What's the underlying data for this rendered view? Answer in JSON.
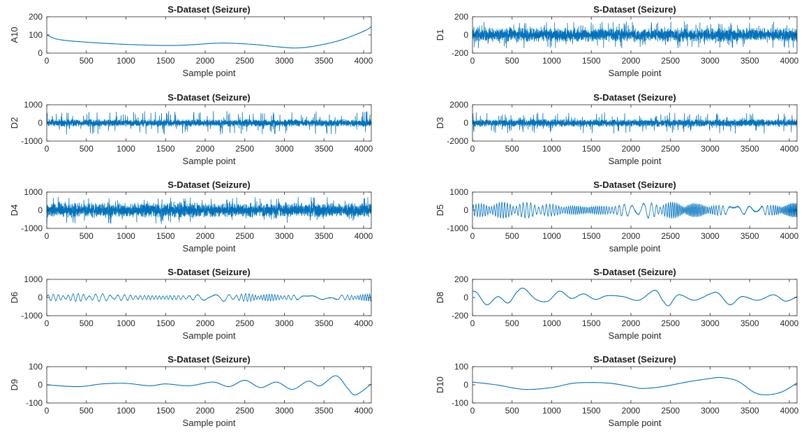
{
  "figure": {
    "line_color": "#0072bd",
    "axis_color": "#262626",
    "background": "#ffffff"
  },
  "chart_data": [
    {
      "type": "line",
      "title": "S-Dataset (Seizure)",
      "xlabel": "Sample point",
      "ylabel": "A10",
      "xlim": [
        0,
        4097
      ],
      "ylim": [
        0,
        200
      ],
      "xticks": [
        0,
        500,
        1000,
        1500,
        2000,
        2500,
        3000,
        3500,
        4000
      ],
      "yticks": [
        0,
        100,
        200
      ],
      "series": [
        {
          "kind": "smooth",
          "x": [
            0,
            150,
            500,
            1000,
            1500,
            1800,
            2200,
            2600,
            2900,
            3150,
            3400,
            3700,
            4000,
            4097
          ],
          "y": [
            100,
            75,
            60,
            48,
            42,
            45,
            55,
            48,
            35,
            28,
            40,
            70,
            120,
            145
          ]
        }
      ]
    },
    {
      "type": "line",
      "title": "S-Dataset (Seizure)",
      "xlabel": "Sample point",
      "ylabel": "D1",
      "xlim": [
        0,
        4097
      ],
      "ylim": [
        -200,
        200
      ],
      "xticks": [
        0,
        500,
        1000,
        1500,
        2000,
        2500,
        3000,
        3500,
        4000
      ],
      "yticks": [
        -200,
        0,
        200
      ],
      "series": [
        {
          "kind": "dense",
          "amplitude": 80,
          "burst": 150,
          "cycles": 380,
          "seed": 2
        }
      ]
    },
    {
      "type": "line",
      "title": "S-Dataset (Seizure)",
      "xlabel": "Sample point",
      "ylabel": "D2",
      "xlim": [
        0,
        4097
      ],
      "ylim": [
        -1000,
        1000
      ],
      "xticks": [
        0,
        500,
        1000,
        1500,
        2000,
        2500,
        3000,
        3500,
        4000
      ],
      "yticks": [
        -1000,
        0,
        1000
      ],
      "series": [
        {
          "kind": "dense",
          "amplitude": 220,
          "burst": 650,
          "cycles": 300,
          "seed": 3
        }
      ]
    },
    {
      "type": "line",
      "title": "S-Dataset (Seizure)",
      "xlabel": "Sample point",
      "ylabel": "D3",
      "xlim": [
        0,
        4097
      ],
      "ylim": [
        -2000,
        2000
      ],
      "xticks": [
        0,
        500,
        1000,
        1500,
        2000,
        2500,
        3000,
        3500,
        4000
      ],
      "yticks": [
        -2000,
        0,
        2000
      ],
      "series": [
        {
          "kind": "dense",
          "amplitude": 450,
          "burst": 1200,
          "cycles": 250,
          "seed": 4
        }
      ]
    },
    {
      "type": "line",
      "title": "S-Dataset (Seizure)",
      "xlabel": "Sample point",
      "ylabel": "D4",
      "xlim": [
        0,
        4097
      ],
      "ylim": [
        -1000,
        1000
      ],
      "xticks": [
        0,
        500,
        1000,
        1500,
        2000,
        2500,
        3000,
        3500,
        4000
      ],
      "yticks": [
        -1000,
        0,
        1000
      ],
      "series": [
        {
          "kind": "dense",
          "amplitude": 420,
          "burst": 750,
          "cycles": 220,
          "seed": 5
        }
      ]
    },
    {
      "type": "line",
      "title": "S-Dataset (Seizure)",
      "xlabel": "sample point",
      "ylabel": "D5",
      "xlim": [
        0,
        4097
      ],
      "ylim": [
        -1000,
        1000
      ],
      "xticks": [
        0,
        500,
        1000,
        1500,
        2000,
        2500,
        3000,
        3500,
        4000
      ],
      "yticks": [
        -1000,
        0,
        1000
      ],
      "series": [
        {
          "kind": "osc",
          "amplitude": 450,
          "cycles": 115,
          "seed": 6
        }
      ]
    },
    {
      "type": "line",
      "title": "S-Dataset (Seizure)",
      "xlabel": "Sample point",
      "ylabel": "D6",
      "xlim": [
        0,
        4097
      ],
      "ylim": [
        -1000,
        1000
      ],
      "xticks": [
        0,
        500,
        1000,
        1500,
        2000,
        2500,
        3000,
        3500,
        4000
      ],
      "yticks": [
        -1000,
        0,
        1000
      ],
      "series": [
        {
          "kind": "osc",
          "amplitude": 220,
          "cycles": 60,
          "seed": 7
        }
      ]
    },
    {
      "type": "line",
      "title": "S-Dataset (Seizure)",
      "xlabel": "Sample point",
      "ylabel": "D8",
      "xlim": [
        0,
        4097
      ],
      "ylim": [
        -200,
        200
      ],
      "xticks": [
        0,
        500,
        1000,
        1500,
        2000,
        2500,
        3000,
        3500,
        4000
      ],
      "yticks": [
        -200,
        0,
        200
      ],
      "series": [
        {
          "kind": "smooth",
          "x": [
            0,
            60,
            180,
            320,
            450,
            560,
            650,
            800,
            950,
            1100,
            1250,
            1400,
            1550,
            1700,
            1900,
            2100,
            2300,
            2400,
            2480,
            2600,
            2800,
            3000,
            3100,
            3250,
            3400,
            3600,
            3800,
            3950,
            4097
          ],
          "y": [
            70,
            50,
            -80,
            10,
            -60,
            60,
            100,
            -20,
            -40,
            70,
            -10,
            40,
            -20,
            20,
            10,
            -30,
            80,
            -30,
            -90,
            30,
            -30,
            40,
            50,
            -80,
            10,
            -30,
            30,
            -40,
            10
          ]
        }
      ]
    },
    {
      "type": "line",
      "title": "S-Dataset (Seizure)",
      "xlabel": "Sample point",
      "ylabel": "D9",
      "xlim": [
        0,
        4097
      ],
      "ylim": [
        -100,
        100
      ],
      "xticks": [
        0,
        500,
        1000,
        1500,
        2000,
        2500,
        3000,
        3500,
        4000
      ],
      "yticks": [
        -100,
        0,
        100
      ],
      "series": [
        {
          "kind": "smooth",
          "x": [
            0,
            400,
            700,
            1000,
            1300,
            1500,
            1800,
            2100,
            2300,
            2500,
            2700,
            2900,
            3100,
            3300,
            3450,
            3650,
            3800,
            3900,
            4097
          ],
          "y": [
            0,
            -10,
            5,
            8,
            -5,
            5,
            -5,
            15,
            -10,
            25,
            -15,
            15,
            -25,
            20,
            -5,
            50,
            -20,
            -55,
            5
          ]
        }
      ]
    },
    {
      "type": "line",
      "title": "S-Dataset (Seizure)",
      "xlabel": "Sample point",
      "ylabel": "D10",
      "xlim": [
        0,
        4097
      ],
      "ylim": [
        -100,
        100
      ],
      "xticks": [
        0,
        500,
        1000,
        1500,
        2000,
        2500,
        3000,
        3500,
        4000
      ],
      "yticks": [
        -100,
        0,
        100
      ],
      "series": [
        {
          "kind": "smooth",
          "x": [
            0,
            300,
            650,
            1000,
            1300,
            1700,
            2000,
            2150,
            2400,
            2700,
            3000,
            3150,
            3350,
            3550,
            3700,
            3900,
            4097
          ],
          "y": [
            15,
            0,
            -25,
            -15,
            10,
            10,
            -10,
            -20,
            -10,
            15,
            35,
            40,
            20,
            -40,
            -55,
            -40,
            10
          ]
        }
      ]
    }
  ]
}
